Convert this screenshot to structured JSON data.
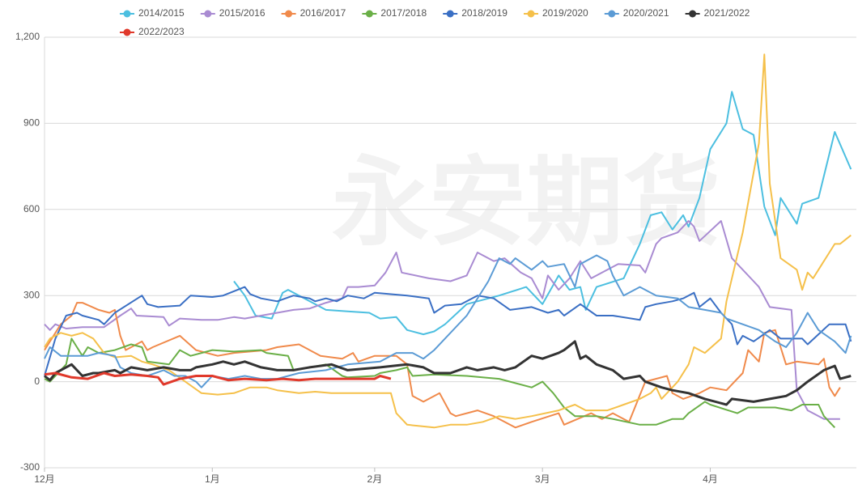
{
  "chart_data": {
    "type": "line",
    "watermark": "永安期货",
    "xlim": [
      0,
      150
    ],
    "xticks": [
      {
        "value": 0,
        "label": "12月"
      },
      {
        "value": 31,
        "label": "1月"
      },
      {
        "value": 61,
        "label": "2月"
      },
      {
        "value": 92,
        "label": "3月"
      },
      {
        "value": 123,
        "label": "4月"
      }
    ],
    "ylim": [
      -300,
      1200
    ],
    "yticks": [
      -300,
      0,
      300,
      600,
      900,
      {
        "value": 1200,
        "label": "1,200"
      }
    ],
    "grid": true,
    "legend": "top",
    "series": [
      {
        "name": "2014/2015",
        "color": "#4cbfe0",
        "x": [
          35,
          37,
          39,
          42,
          44,
          45,
          48,
          52,
          56,
          60,
          62,
          65,
          67,
          70,
          72,
          74,
          78,
          84,
          89,
          92,
          95,
          97,
          99,
          100,
          102,
          107,
          110,
          112,
          114,
          116,
          118,
          119,
          121,
          123,
          126,
          127,
          129,
          131,
          133,
          135,
          136,
          139,
          140,
          143,
          146,
          149
        ],
        "values": [
          350,
          300,
          230,
          220,
          310,
          320,
          290,
          250,
          245,
          240,
          220,
          225,
          180,
          165,
          175,
          200,
          270,
          300,
          330,
          270,
          370,
          320,
          330,
          250,
          330,
          360,
          480,
          580,
          590,
          530,
          580,
          540,
          640,
          810,
          900,
          1010,
          880,
          860,
          610,
          510,
          640,
          550,
          620,
          640,
          870,
          740
        ]
      },
      {
        "name": "2015/2016",
        "color": "#a98bd2",
        "x": [
          0,
          1,
          2,
          4,
          7,
          11,
          14,
          16,
          17,
          22,
          23,
          25,
          29,
          32,
          35,
          37,
          40,
          43,
          46,
          49,
          52,
          55,
          56,
          58,
          61,
          63,
          65,
          66,
          71,
          75,
          78,
          80,
          83,
          85,
          88,
          90,
          92,
          93,
          95,
          97,
          99,
          101,
          104,
          106,
          110,
          111,
          113,
          114,
          117,
          119,
          120,
          121,
          125,
          127,
          131,
          132,
          134,
          138,
          139,
          141,
          142,
          144,
          147
        ],
        "values": [
          200,
          180,
          200,
          185,
          190,
          190,
          230,
          255,
          230,
          225,
          195,
          220,
          215,
          215,
          225,
          220,
          230,
          240,
          250,
          255,
          275,
          290,
          330,
          330,
          335,
          380,
          450,
          380,
          360,
          350,
          370,
          450,
          420,
          430,
          380,
          360,
          290,
          370,
          320,
          360,
          420,
          360,
          390,
          410,
          405,
          380,
          480,
          500,
          520,
          560,
          540,
          490,
          560,
          430,
          350,
          330,
          260,
          250,
          -30,
          -100,
          -110,
          -130,
          -130
        ]
      },
      {
        "name": "2016/2017",
        "color": "#f08a4b",
        "x": [
          0,
          3,
          5,
          6,
          7,
          10,
          12,
          13,
          14,
          15,
          18,
          19,
          20,
          25,
          28,
          32,
          35,
          38,
          41,
          43,
          47,
          49,
          51,
          55,
          57,
          58,
          61,
          65,
          67,
          68,
          70,
          73,
          75,
          76,
          80,
          83,
          87,
          90,
          95,
          96,
          101,
          103,
          105,
          108,
          111,
          115,
          116,
          118,
          121,
          123,
          126,
          127,
          129,
          130,
          132,
          133,
          135,
          137,
          139,
          143,
          144,
          145,
          146,
          147
        ],
        "values": [
          110,
          200,
          230,
          275,
          275,
          250,
          240,
          250,
          160,
          110,
          140,
          110,
          120,
          160,
          110,
          90,
          100,
          105,
          110,
          120,
          130,
          110,
          90,
          80,
          100,
          70,
          90,
          90,
          60,
          -50,
          -70,
          -40,
          -110,
          -120,
          -100,
          -120,
          -160,
          -140,
          -110,
          -150,
          -110,
          -130,
          -110,
          -140,
          0,
          20,
          -40,
          -60,
          -40,
          -20,
          -30,
          -10,
          30,
          110,
          70,
          170,
          180,
          60,
          70,
          60,
          80,
          -20,
          -50,
          -20
        ]
      },
      {
        "name": "2017/2018",
        "color": "#6aaf47",
        "x": [
          0,
          1,
          4,
          5,
          7,
          8,
          10,
          13,
          16,
          18,
          19,
          23,
          25,
          27,
          31,
          35,
          40,
          41,
          45,
          46,
          49,
          52,
          55,
          56,
          61,
          62,
          65,
          67,
          68,
          72,
          78,
          84,
          90,
          92,
          94,
          96,
          98,
          102,
          105,
          110,
          113,
          116,
          118,
          119,
          122,
          123,
          128,
          130,
          135,
          138,
          140,
          143,
          144,
          145,
          146
        ],
        "values": [
          10,
          0,
          60,
          150,
          90,
          120,
          100,
          110,
          130,
          120,
          70,
          60,
          110,
          90,
          110,
          105,
          110,
          100,
          90,
          40,
          50,
          60,
          20,
          15,
          20,
          30,
          40,
          50,
          20,
          25,
          20,
          10,
          -20,
          0,
          -40,
          -90,
          -120,
          -120,
          -130,
          -150,
          -150,
          -130,
          -130,
          -110,
          -70,
          -80,
          -110,
          -90,
          -90,
          -100,
          -80,
          -80,
          -120,
          -140,
          -160
        ]
      },
      {
        "name": "2018/2019",
        "color": "#3a6fc4",
        "x": [
          0,
          2,
          4,
          6,
          7,
          10,
          11,
          13,
          18,
          19,
          21,
          25,
          27,
          31,
          33,
          37,
          38,
          40,
          43,
          46,
          49,
          50,
          52,
          54,
          56,
          59,
          61,
          67,
          71,
          72,
          74,
          77,
          80,
          83,
          86,
          90,
          93,
          95,
          96,
          99,
          102,
          105,
          110,
          111,
          113,
          116,
          118,
          120,
          121,
          123,
          125,
          127,
          128,
          129,
          131,
          134,
          136,
          140,
          141,
          145,
          148,
          149
        ],
        "values": [
          20,
          150,
          230,
          240,
          230,
          215,
          200,
          240,
          300,
          270,
          260,
          265,
          300,
          295,
          300,
          330,
          305,
          290,
          280,
          300,
          290,
          280,
          290,
          280,
          300,
          290,
          310,
          300,
          290,
          240,
          265,
          270,
          300,
          290,
          250,
          260,
          240,
          250,
          230,
          270,
          230,
          230,
          215,
          260,
          270,
          280,
          290,
          310,
          260,
          290,
          240,
          200,
          130,
          160,
          140,
          180,
          150,
          150,
          130,
          200,
          200,
          140
        ]
      },
      {
        "name": "2019/2020",
        "color": "#f5c04a",
        "x": [
          0,
          1,
          3,
          5,
          7,
          9,
          11,
          13,
          16,
          18,
          20,
          23,
          26,
          29,
          32,
          35,
          38,
          41,
          43,
          47,
          50,
          53,
          56,
          61,
          64,
          65,
          67,
          72,
          75,
          78,
          81,
          84,
          87,
          90,
          95,
          98,
          100,
          104,
          107,
          110,
          112,
          113,
          114,
          117,
          119,
          120,
          122,
          125,
          126,
          129,
          132,
          133,
          134,
          136,
          139,
          140,
          141,
          142,
          145,
          146,
          147,
          149
        ],
        "values": [
          120,
          150,
          170,
          160,
          170,
          150,
          100,
          85,
          90,
          70,
          60,
          40,
          0,
          -40,
          -45,
          -40,
          -20,
          -20,
          -30,
          -40,
          -35,
          -40,
          -40,
          -40,
          -40,
          -110,
          -150,
          -160,
          -150,
          -150,
          -140,
          -120,
          -130,
          -120,
          -100,
          -80,
          -100,
          -100,
          -80,
          -60,
          -40,
          -20,
          -60,
          0,
          60,
          120,
          100,
          150,
          280,
          520,
          830,
          1140,
          690,
          430,
          390,
          320,
          380,
          360,
          450,
          480,
          480,
          510
        ]
      },
      {
        "name": "2020/2021",
        "color": "#5b9bd5",
        "x": [
          0,
          1,
          3,
          8,
          10,
          13,
          14,
          16,
          19,
          22,
          24,
          26,
          28,
          29,
          31,
          34,
          37,
          40,
          43,
          47,
          52,
          56,
          62,
          65,
          68,
          70,
          72,
          78,
          82,
          84,
          86,
          87,
          90,
          92,
          93,
          96,
          98,
          99,
          102,
          104,
          105,
          107,
          110,
          113,
          117,
          119,
          122,
          125,
          126,
          129,
          132,
          135,
          137,
          139,
          141,
          143,
          146,
          148,
          149
        ],
        "values": [
          80,
          120,
          90,
          90,
          100,
          90,
          50,
          30,
          20,
          40,
          20,
          20,
          0,
          -20,
          20,
          10,
          20,
          10,
          10,
          30,
          40,
          60,
          70,
          100,
          100,
          80,
          110,
          230,
          350,
          430,
          410,
          430,
          390,
          420,
          400,
          410,
          330,
          410,
          440,
          420,
          370,
          300,
          330,
          300,
          290,
          260,
          250,
          240,
          220,
          200,
          180,
          140,
          120,
          170,
          240,
          180,
          140,
          100,
          160
        ]
      },
      {
        "name": "2021/2022",
        "color": "#333333",
        "x": [
          0,
          1,
          2,
          5,
          7,
          9,
          10,
          13,
          14,
          16,
          19,
          22,
          25,
          27,
          28,
          31,
          33,
          35,
          37,
          40,
          43,
          46,
          49,
          53,
          56,
          59,
          62,
          67,
          70,
          72,
          75,
          78,
          80,
          83,
          85,
          87,
          90,
          92,
          95,
          96,
          98,
          99,
          100,
          102,
          105,
          107,
          110,
          111,
          114,
          116,
          119,
          122,
          126,
          127,
          131,
          134,
          137,
          139,
          141,
          144,
          146,
          147,
          149
        ],
        "values": [
          20,
          5,
          30,
          60,
          20,
          30,
          30,
          40,
          30,
          50,
          40,
          50,
          40,
          40,
          50,
          60,
          70,
          60,
          70,
          50,
          40,
          40,
          50,
          60,
          40,
          45,
          50,
          60,
          50,
          30,
          30,
          50,
          40,
          50,
          40,
          50,
          90,
          80,
          100,
          110,
          140,
          80,
          90,
          60,
          40,
          10,
          20,
          0,
          -20,
          -30,
          -40,
          -60,
          -80,
          -60,
          -70,
          -60,
          -50,
          -30,
          0,
          40,
          55,
          10,
          20
        ]
      },
      {
        "name": "2022/2023",
        "color": "#e0392b",
        "x": [
          0,
          2,
          5,
          8,
          11,
          13,
          16,
          19,
          21,
          22,
          25,
          28,
          31,
          34,
          37,
          41,
          44,
          47,
          50,
          55,
          61,
          62,
          64
        ],
        "values": [
          25,
          30,
          15,
          10,
          30,
          20,
          25,
          20,
          15,
          -10,
          10,
          20,
          20,
          5,
          10,
          5,
          10,
          5,
          10,
          10,
          10,
          20,
          10
        ]
      }
    ]
  }
}
